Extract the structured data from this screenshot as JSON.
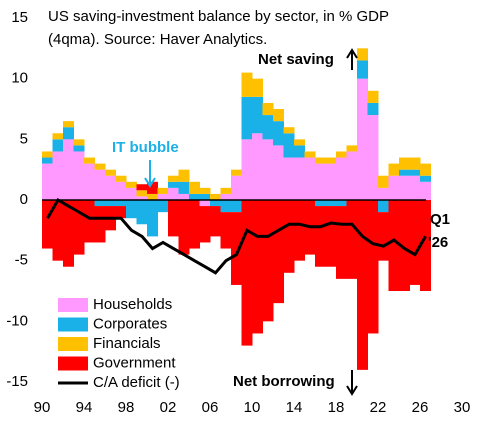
{
  "chart_data": {
    "type": "stacked-bar-line",
    "title": "US saving-investment balance by sector, in % GDP",
    "subtitle": "(4qma). Source: Haver Analytics.",
    "annotations": [
      "Net saving",
      "IT bubble",
      "Net borrowing",
      "Q1",
      "'26"
    ],
    "x": [
      1990,
      1991,
      1992,
      1993,
      1994,
      1995,
      1996,
      1997,
      1998,
      1999,
      2000,
      2001,
      2002,
      2003,
      2004,
      2005,
      2006,
      2007,
      2008,
      2009,
      2010,
      2011,
      2012,
      2013,
      2014,
      2015,
      2016,
      2017,
      2018,
      2019,
      2020,
      2021,
      2022,
      2023,
      2024,
      2025,
      2026
    ],
    "series": [
      {
        "name": "Households",
        "color": "#ff99ff",
        "values": [
          3,
          4,
          5,
          4,
          3,
          2.5,
          2,
          1.5,
          1,
          0.3,
          0,
          0.5,
          1,
          0.5,
          0,
          -0.5,
          0,
          0.5,
          2,
          5,
          5.5,
          5,
          4.5,
          3.5,
          3.5,
          3.5,
          3,
          3,
          3.5,
          4,
          10,
          7,
          1,
          2,
          2,
          2,
          1.5
        ]
      },
      {
        "name": "Corporates",
        "color": "#1ab0e8",
        "values": [
          0.5,
          1,
          1,
          0.5,
          0,
          -0.5,
          -0.5,
          -0.5,
          -1.5,
          -2,
          -3,
          -1,
          0.5,
          1,
          0.5,
          0.5,
          -0.5,
          -1,
          -1,
          3.5,
          3,
          2,
          2,
          2,
          1,
          0,
          -0.5,
          -0.5,
          -0.5,
          0,
          1.5,
          1,
          -1,
          0,
          0.5,
          0.5,
          0.5
        ]
      },
      {
        "name": "Financials",
        "color": "#ffc000",
        "values": [
          0.5,
          0.5,
          0.5,
          0.5,
          0.5,
          0.5,
          0.5,
          0.5,
          0.5,
          0.5,
          0.5,
          0.5,
          0.5,
          1,
          1,
          0.5,
          0.5,
          0.5,
          0.5,
          2,
          1.5,
          1,
          1,
          0.5,
          0.5,
          0.5,
          0.5,
          0.5,
          0.5,
          0.5,
          1,
          1,
          1,
          1,
          1,
          1,
          1
        ]
      },
      {
        "name": "Government",
        "color": "#ff0000",
        "values": [
          -4,
          -5,
          -5.5,
          -4.5,
          -3.5,
          -3,
          -2,
          -1,
          0,
          0.5,
          1,
          0,
          -3,
          -4.5,
          -4,
          -3,
          -2.5,
          -3,
          -6,
          -12,
          -11,
          -10,
          -8.5,
          -6,
          -5,
          -4.5,
          -5,
          -5,
          -6,
          -6.5,
          -14,
          -11,
          -4,
          -7.5,
          -7.5,
          -7,
          -7.5
        ]
      },
      {
        "name": "C/A deficit (-)",
        "color": "#000000",
        "kind": "line",
        "values": [
          -1.5,
          0,
          -0.5,
          -1,
          -1.5,
          -1.5,
          -1.5,
          -1.5,
          -2.5,
          -3,
          -4,
          -3.5,
          -4,
          -4.5,
          -5,
          -5.5,
          -6,
          -5,
          -4.5,
          -2.5,
          -3,
          -3,
          -2.5,
          -2,
          -2,
          -2.2,
          -2.2,
          -1.9,
          -2,
          -2,
          -3,
          -3.6,
          -3.8,
          -3.3,
          -4,
          -4.5,
          -3
        ]
      }
    ],
    "xlim": [
      1990,
      2030
    ],
    "xticks": [
      {
        "value": 1990,
        "label": "90"
      },
      {
        "value": 1994,
        "label": "94"
      },
      {
        "value": 1998,
        "label": "98"
      },
      {
        "value": 2002,
        "label": "02"
      },
      {
        "value": 2006,
        "label": "06"
      },
      {
        "value": 2010,
        "label": "10"
      },
      {
        "value": 2014,
        "label": "14"
      },
      {
        "value": 2018,
        "label": "18"
      },
      {
        "value": 2022,
        "label": "22"
      },
      {
        "value": 2026,
        "label": "26"
      },
      {
        "value": 2030,
        "label": "30"
      }
    ],
    "ylim": [
      -15,
      15
    ],
    "yticks": [
      -15,
      -10,
      -5,
      0,
      5,
      10,
      15
    ]
  }
}
